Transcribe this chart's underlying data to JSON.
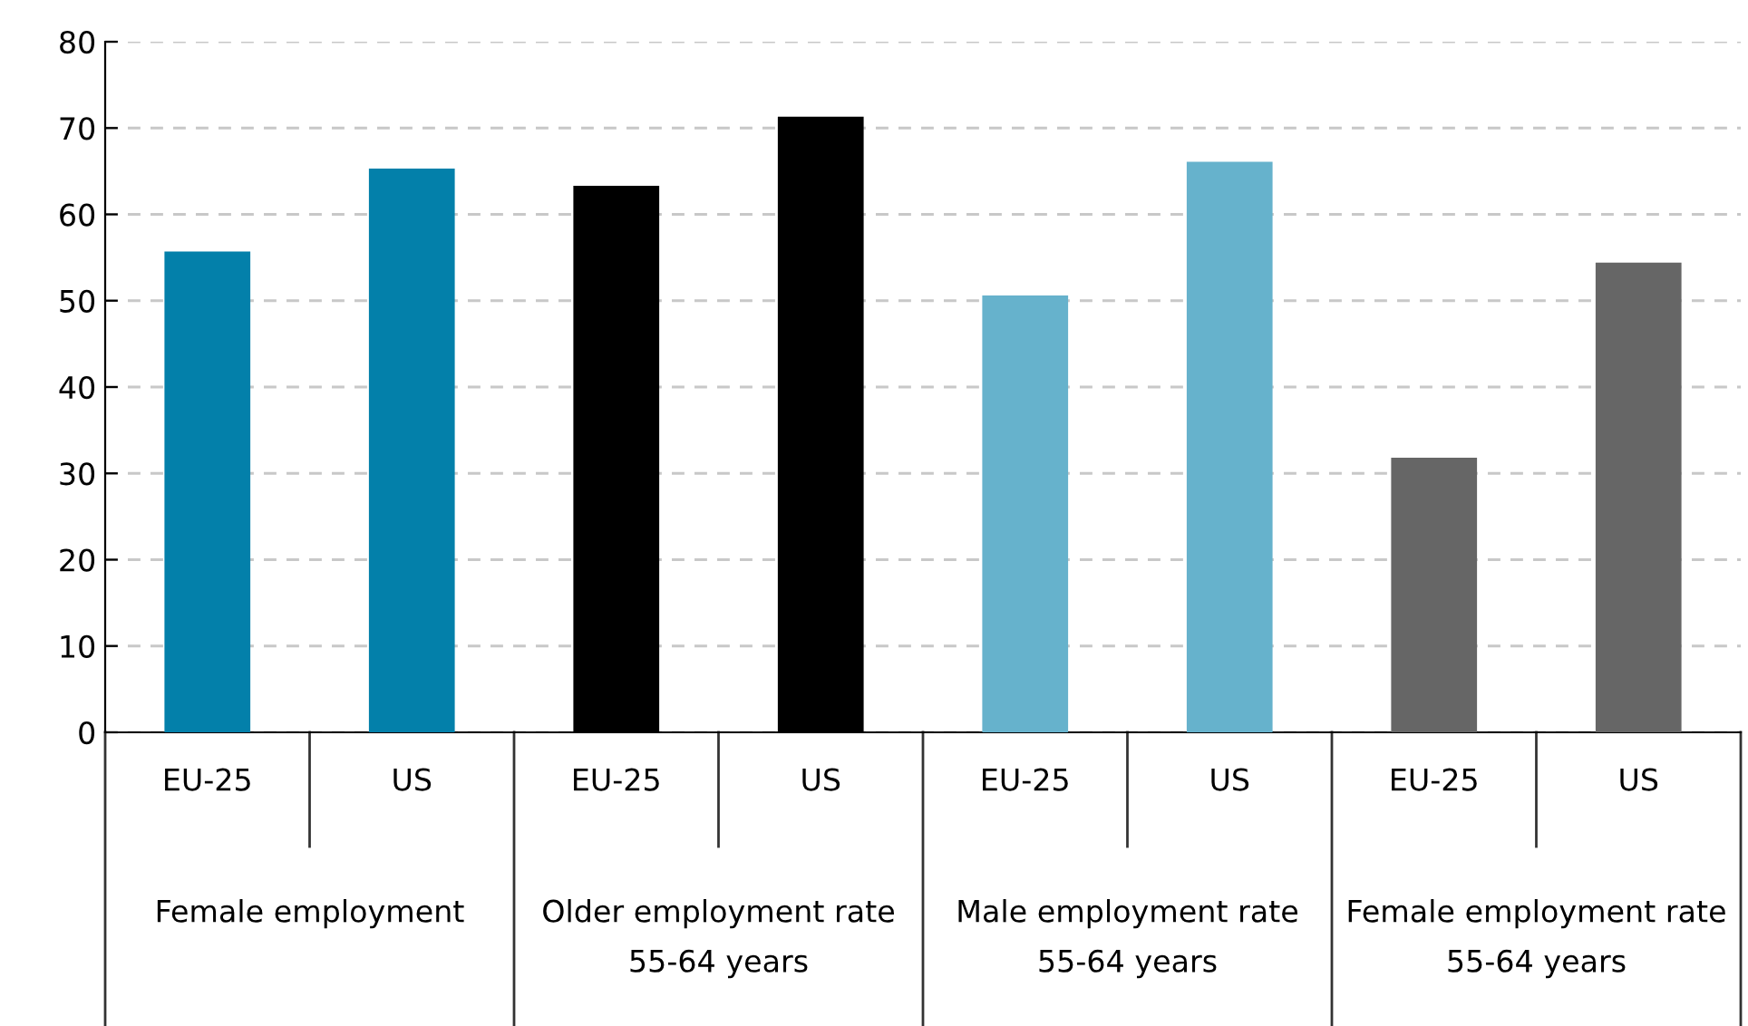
{
  "chart_data": {
    "type": "bar",
    "categories": [
      "EU-25",
      "US",
      "EU-25",
      "US",
      "EU-25",
      "US",
      "EU-25",
      "US"
    ],
    "values": [
      55.7,
      65.3,
      63.3,
      71.3,
      50.6,
      66.1,
      31.8,
      54.4
    ],
    "colors": [
      "#0380aa",
      "#0380aa",
      "#000000",
      "#000000",
      "#66b2cc",
      "#66b2cc",
      "#666666",
      "#666666"
    ],
    "ylim": [
      0,
      80
    ],
    "yticks": [
      0,
      10,
      20,
      30,
      40,
      50,
      60,
      70,
      80
    ],
    "grid": "y",
    "annotations": [
      "Female employment",
      "Older employment rate\n55-64 years",
      "Male employment rate\n55-64 years",
      "Female employment rate\n55-64 years"
    ]
  }
}
